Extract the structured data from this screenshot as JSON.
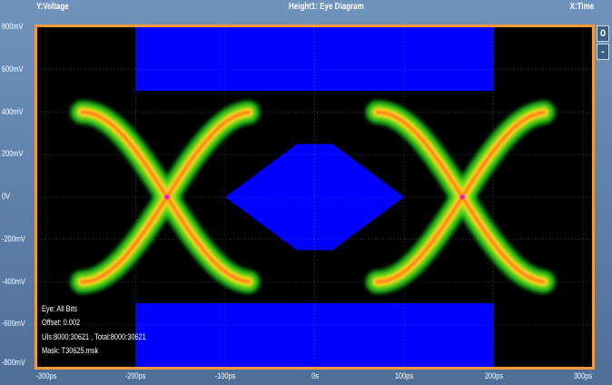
{
  "header": {
    "y_axis_label": "Y:Voltage",
    "title": "Height1: Eye Diagram",
    "x_axis_label": "X:Time"
  },
  "side_panel": {
    "zoom_reset": "0",
    "zoom_out": "-"
  },
  "info": {
    "eye": "Eye: All Bits",
    "offset": "Offset: 0.002",
    "uis": "UIs:8000:30621 , Total:8000:30621",
    "mask": "Mask: T30625.msk"
  },
  "colors": {
    "frame": "#f29a3a",
    "mask": "#0000ff",
    "background": "#000000",
    "crossing_marker": "#ff00ff"
  },
  "chart_data": {
    "type": "scatter",
    "title": "Height1: Eye Diagram",
    "xlabel": "X:Time",
    "ylabel": "Y:Voltage",
    "x_unit": "ps",
    "y_unit": "mV",
    "xlim": [
      -310,
      310
    ],
    "ylim": [
      -800,
      800
    ],
    "x_ticks": [
      "-300ps",
      "-200ps",
      "-100ps",
      "0s",
      "100ps",
      "200ps",
      "300ps"
    ],
    "x_tick_values": [
      -300,
      -200,
      -100,
      0,
      100,
      200,
      300
    ],
    "y_ticks": [
      "800mV",
      "600mV",
      "400mV",
      "200mV",
      "0V",
      "-200mV",
      "-400mV",
      "-600mV",
      "-800mV"
    ],
    "y_tick_values": [
      800,
      600,
      400,
      200,
      0,
      -200,
      -400,
      -600,
      -800
    ],
    "grid": true,
    "eye": {
      "levels_mV": [
        400,
        -400
      ],
      "crossings_ps": [
        -165,
        165
      ],
      "unit_interval_ps": 330
    },
    "mask_regions": [
      {
        "name": "top",
        "points": [
          [
            -200,
            800
          ],
          [
            200,
            800
          ],
          [
            200,
            500
          ],
          [
            -200,
            500
          ]
        ]
      },
      {
        "name": "center",
        "points": [
          [
            -100,
            0
          ],
          [
            -20,
            250
          ],
          [
            20,
            250
          ],
          [
            100,
            0
          ],
          [
            20,
            -250
          ],
          [
            -20,
            -250
          ]
        ]
      },
      {
        "name": "bottom",
        "points": [
          [
            -200,
            -500
          ],
          [
            200,
            -500
          ],
          [
            200,
            -800
          ],
          [
            -200,
            -800
          ]
        ]
      }
    ]
  }
}
